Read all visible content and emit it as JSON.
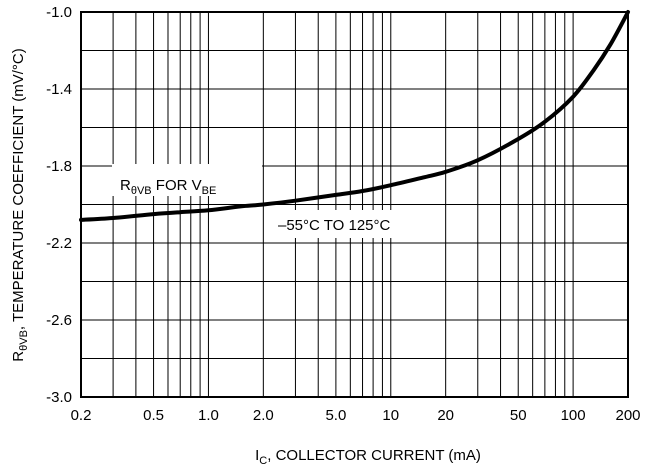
{
  "chart_data": {
    "type": "line",
    "x_scale": "log",
    "xlim": [
      0.2,
      200
    ],
    "ylim": [
      -3.0,
      -1.0
    ],
    "x_ticks": [
      "0.2",
      "0.5",
      "1.0",
      "2.0",
      "5.0",
      "10",
      "20",
      "50",
      "100",
      "200"
    ],
    "x_tick_values": [
      0.2,
      0.5,
      1,
      2,
      5,
      10,
      20,
      50,
      100,
      200
    ],
    "y_ticks": [
      "-1.0",
      "-1.4",
      "-1.8",
      "-2.2",
      "-2.6",
      "-3.0"
    ],
    "y_tick_values": [
      -1.0,
      -1.4,
      -1.8,
      -2.2,
      -2.6,
      -3.0
    ],
    "grid": true,
    "xlabel": {
      "main": "I",
      "sub": "C",
      "rest": ", COLLECTOR CURRENT (mA)"
    },
    "ylabel": {
      "main": "R",
      "sub": "θVB",
      "rest": ", TEMPERATURE COEFFICIENT (mV/°C)"
    },
    "annotations": {
      "series_label": {
        "main": "R",
        "sub1": "θVB",
        "mid": " FOR V",
        "sub2": "BE"
      },
      "temp_range": "–55°C TO 125°C"
    },
    "series": [
      {
        "x": [
          0.2,
          0.3,
          0.5,
          0.7,
          1.0,
          1.5,
          2.0,
          3.0,
          5.0,
          7.0,
          10,
          15,
          20,
          30,
          50,
          70,
          100,
          130,
          160,
          200
        ],
        "y": [
          -2.08,
          -2.07,
          -2.05,
          -2.04,
          -2.03,
          -2.01,
          -2.0,
          -1.98,
          -1.95,
          -1.93,
          -1.9,
          -1.86,
          -1.83,
          -1.77,
          -1.66,
          -1.57,
          -1.44,
          -1.3,
          -1.17,
          -1.0
        ]
      }
    ]
  }
}
